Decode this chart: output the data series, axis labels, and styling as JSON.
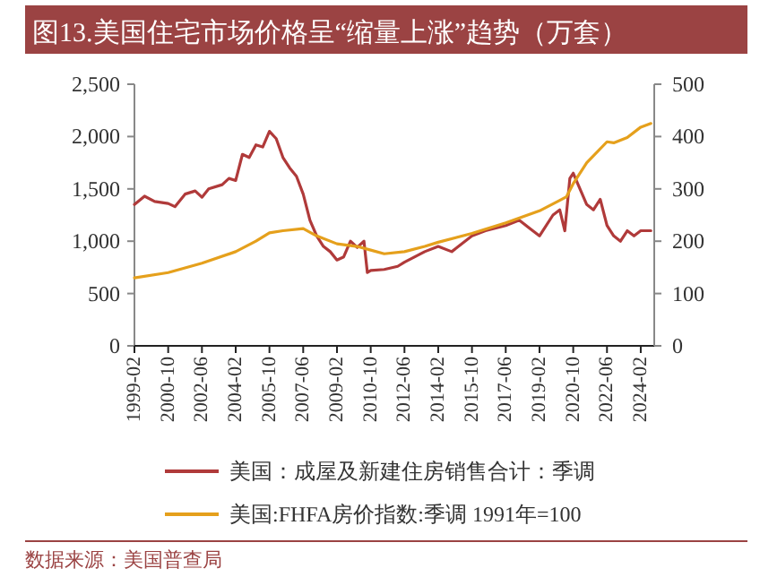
{
  "chart_data": {
    "type": "line",
    "title": "图13.美国住宅市场价格呈“缩量上涨”趋势（万套）",
    "annotations": [
      "数据来源：美国普查局"
    ],
    "xlim": [
      "1999-02",
      "2024-10"
    ],
    "xticks": [
      "1999-02",
      "2000-10",
      "2002-06",
      "2004-02",
      "2005-10",
      "2007-06",
      "2009-02",
      "2010-10",
      "2012-06",
      "2014-02",
      "2015-10",
      "2017-06",
      "2019-02",
      "2020-10",
      "2022-06",
      "2024-02"
    ],
    "ylim": [
      0,
      2500
    ],
    "yticks": [
      0,
      500,
      {
        "value": 1000,
        "label": "1,000"
      },
      {
        "value": 1500,
        "label": "1,500"
      },
      {
        "value": 2000,
        "label": "2,000"
      },
      {
        "value": 2500,
        "label": "2,500"
      }
    ],
    "y2lim": [
      0,
      500
    ],
    "y2ticks": [
      0,
      100,
      200,
      300,
      400,
      500
    ],
    "legend": "bottom",
    "series": [
      {
        "name": "美国：成屋及新建住房销售合计：季调",
        "color": "#b03a3a",
        "x": [
          "1999-02",
          "1999-08",
          "2000-02",
          "2000-10",
          "2001-02",
          "2001-08",
          "2002-02",
          "2002-06",
          "2002-10",
          "2003-06",
          "2003-10",
          "2004-02",
          "2004-06",
          "2004-10",
          "2005-02",
          "2005-06",
          "2005-10",
          "2006-02",
          "2006-06",
          "2006-10",
          "2007-02",
          "2007-06",
          "2007-10",
          "2008-02",
          "2008-06",
          "2008-10",
          "2009-02",
          "2009-06",
          "2009-10",
          "2010-02",
          "2010-06",
          "2010-08",
          "2010-10",
          "2011-06",
          "2012-02",
          "2012-06",
          "2013-06",
          "2014-02",
          "2014-10",
          "2015-10",
          "2016-06",
          "2017-06",
          "2018-02",
          "2018-10",
          "2019-02",
          "2019-10",
          "2020-02",
          "2020-05",
          "2020-08",
          "2020-10",
          "2021-02",
          "2021-06",
          "2021-10",
          "2022-02",
          "2022-06",
          "2022-10",
          "2023-02",
          "2023-06",
          "2023-10",
          "2024-02",
          "2024-08"
        ],
        "values": [
          1350,
          1430,
          1380,
          1360,
          1330,
          1450,
          1480,
          1420,
          1500,
          1540,
          1600,
          1580,
          1830,
          1800,
          1920,
          1900,
          2050,
          1980,
          1800,
          1700,
          1620,
          1450,
          1200,
          1050,
          950,
          900,
          820,
          850,
          1000,
          940,
          1000,
          700,
          720,
          730,
          760,
          800,
          900,
          950,
          900,
          1050,
          1100,
          1150,
          1200,
          1100,
          1050,
          1250,
          1300,
          1100,
          1600,
          1650,
          1500,
          1350,
          1300,
          1400,
          1150,
          1050,
          1000,
          1100,
          1050,
          1100,
          1100
        ]
      },
      {
        "name": "美国:FHFA房价指数:季调 1991年=100",
        "color": "#e5a01c",
        "axis": "y2",
        "x": [
          "1999-02",
          "2000-10",
          "2002-06",
          "2004-02",
          "2005-02",
          "2005-10",
          "2006-06",
          "2007-06",
          "2008-02",
          "2009-02",
          "2010-02",
          "2010-10",
          "2011-06",
          "2012-06",
          "2013-06",
          "2014-02",
          "2015-10",
          "2017-06",
          "2019-02",
          "2020-02",
          "2020-06",
          "2020-10",
          "2021-06",
          "2022-06",
          "2022-10",
          "2023-06",
          "2024-02",
          "2024-08"
        ],
        "values": [
          130,
          140,
          158,
          180,
          200,
          216,
          220,
          224,
          210,
          195,
          190,
          183,
          176,
          180,
          190,
          198,
          215,
          235,
          258,
          278,
          285,
          310,
          350,
          390,
          388,
          398,
          418,
          425
        ]
      }
    ]
  }
}
